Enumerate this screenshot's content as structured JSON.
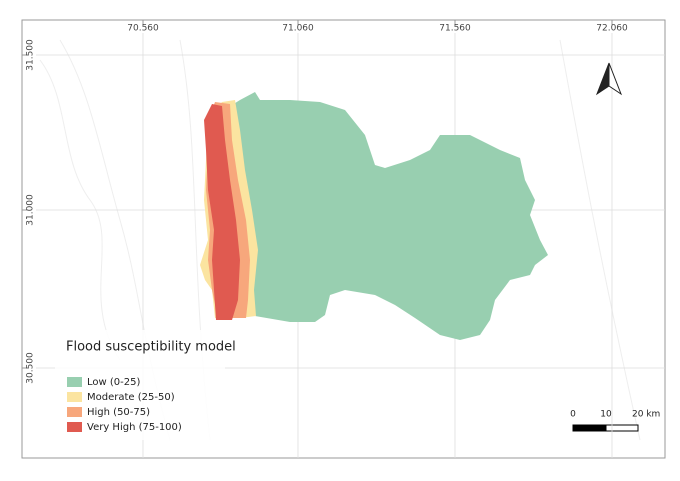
{
  "frame": {
    "top_labels": [
      "70.560",
      "71.060",
      "71.560",
      "72.060"
    ],
    "left_labels": [
      "31.500",
      "31.000",
      "30.500"
    ]
  },
  "legend": {
    "title": "Flood susceptibility model",
    "items": [
      {
        "label": "Low (0-25)",
        "color": "#98cfb0"
      },
      {
        "label": "Moderate (25-50)",
        "color": "#fbe4a0"
      },
      {
        "label": "High (50-75)",
        "color": "#f7a77c"
      },
      {
        "label": "Very High (75-100)",
        "color": "#e05a50"
      }
    ]
  },
  "scale_bar": {
    "labels": [
      "0",
      "10",
      "20 km"
    ]
  }
}
